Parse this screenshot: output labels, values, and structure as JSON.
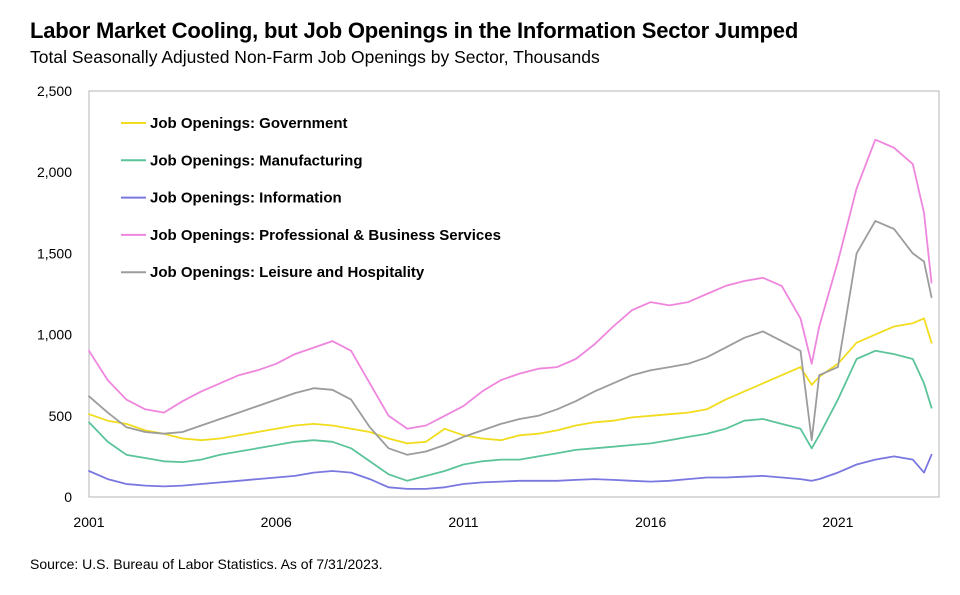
{
  "chart_data": {
    "type": "line",
    "title": "Labor Market Cooling, but Job Openings in the Information Sector Jumped",
    "subtitle": "Total Seasonally Adjusted Non-Farm Job Openings by Sector, Thousands",
    "source": "Source: U.S. Bureau of Labor Statistics. As of 7/31/2023.",
    "xlabel": "",
    "ylabel": "",
    "xlim": [
      2001.0,
      2023.7
    ],
    "ylim": [
      0,
      2500
    ],
    "x_ticks": [
      2001,
      2006,
      2011,
      2016,
      2021
    ],
    "x_tick_labels": [
      "2001",
      "2006",
      "2011",
      "2016",
      "2021"
    ],
    "y_ticks": [
      0,
      500,
      1000,
      1500,
      2000,
      2500
    ],
    "y_tick_labels": [
      "0",
      "500",
      "1,000",
      "1,500",
      "2,000",
      "2,500"
    ],
    "grid": false,
    "legend_position": "top-left",
    "x": [
      2001.0,
      2001.5,
      2002.0,
      2002.5,
      2003.0,
      2003.5,
      2004.0,
      2004.5,
      2005.0,
      2005.5,
      2006.0,
      2006.5,
      2007.0,
      2007.5,
      2008.0,
      2008.5,
      2009.0,
      2009.5,
      2010.0,
      2010.5,
      2011.0,
      2011.5,
      2012.0,
      2012.5,
      2013.0,
      2013.5,
      2014.0,
      2014.5,
      2015.0,
      2015.5,
      2016.0,
      2016.5,
      2017.0,
      2017.5,
      2018.0,
      2018.5,
      2019.0,
      2019.5,
      2020.0,
      2020.3,
      2020.5,
      2021.0,
      2021.5,
      2022.0,
      2022.5,
      2023.0,
      2023.3,
      2023.5
    ],
    "series": [
      {
        "name": "Job Openings: Government",
        "color": "#f2dc1e",
        "values": [
          510,
          470,
          450,
          410,
          390,
          360,
          350,
          360,
          380,
          400,
          420,
          440,
          450,
          440,
          420,
          400,
          360,
          330,
          340,
          420,
          380,
          360,
          350,
          380,
          390,
          410,
          440,
          460,
          470,
          490,
          500,
          510,
          520,
          540,
          600,
          650,
          700,
          750,
          800,
          690,
          740,
          820,
          950,
          1000,
          1050,
          1070,
          1100,
          950
        ]
      },
      {
        "name": "Job Openings: Manufacturing",
        "color": "#5cc49a",
        "values": [
          460,
          340,
          260,
          240,
          220,
          215,
          230,
          260,
          280,
          300,
          320,
          340,
          350,
          340,
          300,
          220,
          140,
          100,
          130,
          160,
          200,
          220,
          230,
          230,
          250,
          270,
          290,
          300,
          310,
          320,
          330,
          350,
          370,
          390,
          420,
          470,
          480,
          450,
          420,
          300,
          380,
          600,
          850,
          900,
          880,
          850,
          700,
          550
        ]
      },
      {
        "name": "Job Openings: Information",
        "color": "#7a77e0",
        "values": [
          160,
          110,
          80,
          70,
          65,
          70,
          80,
          90,
          100,
          110,
          120,
          130,
          150,
          160,
          150,
          110,
          60,
          50,
          50,
          60,
          80,
          90,
          95,
          100,
          100,
          100,
          105,
          110,
          105,
          100,
          95,
          100,
          110,
          120,
          120,
          125,
          130,
          120,
          110,
          100,
          110,
          150,
          200,
          230,
          250,
          230,
          150,
          260
        ]
      },
      {
        "name": "Job Openings: Professional & Business Services",
        "color": "#ef86de",
        "values": [
          900,
          720,
          600,
          540,
          520,
          590,
          650,
          700,
          750,
          780,
          820,
          880,
          920,
          960,
          900,
          700,
          500,
          420,
          440,
          500,
          560,
          650,
          720,
          760,
          790,
          800,
          850,
          940,
          1050,
          1150,
          1200,
          1180,
          1200,
          1250,
          1300,
          1330,
          1350,
          1300,
          1100,
          820,
          1050,
          1450,
          1900,
          2200,
          2150,
          2050,
          1750,
          1320
        ]
      },
      {
        "name": "Job Openings: Leisure and Hospitality",
        "color": "#9c9c9c",
        "values": [
          620,
          520,
          430,
          400,
          390,
          400,
          440,
          480,
          520,
          560,
          600,
          640,
          670,
          660,
          600,
          430,
          300,
          260,
          280,
          320,
          370,
          410,
          450,
          480,
          500,
          540,
          590,
          650,
          700,
          750,
          780,
          800,
          820,
          860,
          920,
          980,
          1020,
          960,
          900,
          350,
          750,
          800,
          1500,
          1700,
          1650,
          1500,
          1450,
          1230
        ]
      }
    ]
  }
}
